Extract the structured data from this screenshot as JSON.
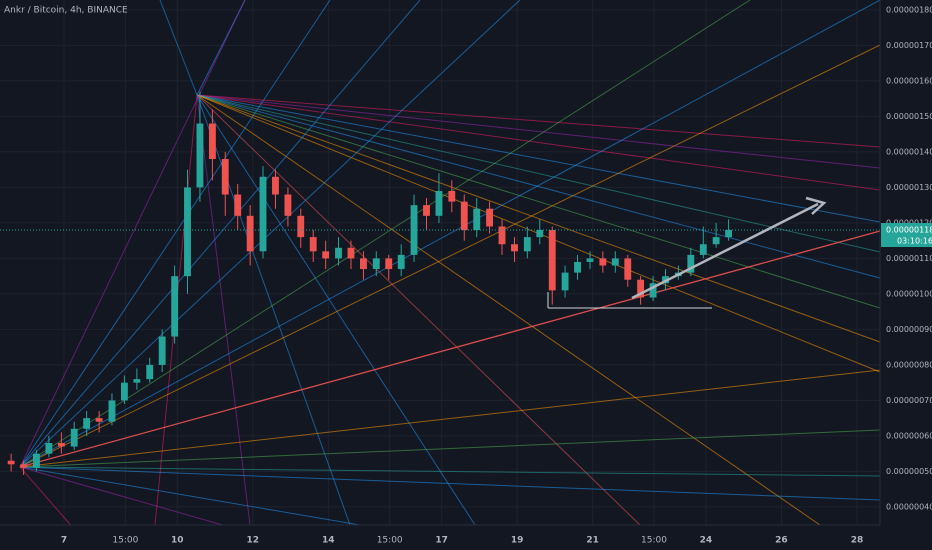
{
  "chart_data": {
    "type": "candlestick",
    "title": "Ankr / Bitcoin, 4h, BINANCE",
    "up_color": "#26a69a",
    "down_color": "#ef5350",
    "grid": true,
    "xlim": [
      5.305,
      28.61
    ],
    "ylim": [
      3.49e-07,
      1.828e-06
    ],
    "xticks": [
      {
        "value": 7,
        "label": "7"
      },
      {
        "value": 8.625,
        "label": "15:00"
      },
      {
        "value": 10,
        "label": "10"
      },
      {
        "value": 12,
        "label": "12"
      },
      {
        "value": 14,
        "label": "14"
      },
      {
        "value": 15.625,
        "label": "15:00"
      },
      {
        "value": 17,
        "label": "17"
      },
      {
        "value": 19,
        "label": "19"
      },
      {
        "value": 21,
        "label": "21"
      },
      {
        "value": 22.625,
        "label": "15:00"
      },
      {
        "value": 24,
        "label": "24"
      },
      {
        "value": 26,
        "label": "26"
      },
      {
        "value": 28,
        "label": "28"
      }
    ],
    "yticks": [
      {
        "value": 4e-07,
        "label": "0.00000040"
      },
      {
        "value": 5e-07,
        "label": "0.00000050"
      },
      {
        "value": 6e-07,
        "label": "0.00000060"
      },
      {
        "value": 7e-07,
        "label": "0.00000070"
      },
      {
        "value": 8e-07,
        "label": "0.00000080"
      },
      {
        "value": 9e-07,
        "label": "0.00000090"
      },
      {
        "value": 1e-06,
        "label": "0.00000100"
      },
      {
        "value": 1.1e-06,
        "label": "0.00000110"
      },
      {
        "value": 1.2e-06,
        "label": "0.00000120"
      },
      {
        "value": 1.3e-06,
        "label": "0.00000130"
      },
      {
        "value": 1.4e-06,
        "label": "0.00000140"
      },
      {
        "value": 1.5e-06,
        "label": "0.00000150"
      },
      {
        "value": 1.6e-06,
        "label": "0.00000160"
      },
      {
        "value": 1.7e-06,
        "label": "0.00000170"
      },
      {
        "value": 1.8e-06,
        "label": "0.00000180"
      }
    ],
    "last_price": {
      "value": 1.18e-06,
      "label": "0.00000118"
    },
    "countdown": "03:10:16",
    "x": [
      5.6,
      5.93,
      6.27,
      6.6,
      6.93,
      7.27,
      7.6,
      7.93,
      8.27,
      8.6,
      8.93,
      9.27,
      9.6,
      9.93,
      10.27,
      10.6,
      10.93,
      11.27,
      11.6,
      11.93,
      12.27,
      12.6,
      12.93,
      13.27,
      13.6,
      13.93,
      14.27,
      14.6,
      14.93,
      15.27,
      15.6,
      15.93,
      16.27,
      16.6,
      16.93,
      17.27,
      17.6,
      17.93,
      18.27,
      18.6,
      18.93,
      19.27,
      19.6,
      19.93,
      20.27,
      20.6,
      20.93,
      21.27,
      21.6,
      21.93,
      22.27,
      22.6,
      22.93,
      23.27,
      23.6,
      23.93,
      24.27,
      24.6
    ],
    "open": [
      5.3e-07,
      5.2e-07,
      5.1e-07,
      5.5e-07,
      5.8e-07,
      5.7e-07,
      6.2e-07,
      6.5e-07,
      6.4e-07,
      7e-07,
      7.5e-07,
      7.6e-07,
      8e-07,
      8.8e-07,
      1.05e-06,
      1.3e-06,
      1.48e-06,
      1.38e-06,
      1.28e-06,
      1.22e-06,
      1.12e-06,
      1.33e-06,
      1.28e-06,
      1.22e-06,
      1.16e-06,
      1.12e-06,
      1.1e-06,
      1.13e-06,
      1.1e-06,
      1.07e-06,
      1.1e-06,
      1.07e-06,
      1.11e-06,
      1.25e-06,
      1.22e-06,
      1.29e-06,
      1.26e-06,
      1.18e-06,
      1.24e-06,
      1.19e-06,
      1.14e-06,
      1.12e-06,
      1.16e-06,
      1.18e-06,
      1.01e-06,
      1.06e-06,
      1.09e-06,
      1.1e-06,
      1.08e-06,
      1.1e-06,
      1.04e-06,
      9.9e-07,
      1.03e-06,
      1.05e-06,
      1.06e-06,
      1.11e-06,
      1.14e-06,
      1.16e-06
    ],
    "high": [
      5.5e-07,
      5.3e-07,
      5.6e-07,
      6e-07,
      6.1e-07,
      6.4e-07,
      6.7e-07,
      6.7e-07,
      7.2e-07,
      7.7e-07,
      7.9e-07,
      8.2e-07,
      9e-07,
      1.08e-06,
      1.35e-06,
      1.57e-06,
      1.52e-06,
      1.4e-06,
      1.31e-06,
      1.25e-06,
      1.36e-06,
      1.35e-06,
      1.3e-06,
      1.24e-06,
      1.18e-06,
      1.15e-06,
      1.16e-06,
      1.15e-06,
      1.12e-06,
      1.12e-06,
      1.11e-06,
      1.14e-06,
      1.28e-06,
      1.27e-06,
      1.34e-06,
      1.32e-06,
      1.28e-06,
      1.27e-06,
      1.26e-06,
      1.21e-06,
      1.16e-06,
      1.19e-06,
      1.21e-06,
      1.19e-06,
      1.08e-06,
      1.11e-06,
      1.12e-06,
      1.12e-06,
      1.12e-06,
      1.11e-06,
      1.05e-06,
      1.05e-06,
      1.07e-06,
      1.08e-06,
      1.13e-06,
      1.19e-06,
      1.2e-06,
      1.21e-06
    ],
    "low": [
      5e-07,
      4.9e-07,
      5e-07,
      5.4e-07,
      5.5e-07,
      5.6e-07,
      6e-07,
      6.1e-07,
      6.3e-07,
      6.9e-07,
      7.3e-07,
      7.5e-07,
      7.8e-07,
      8.6e-07,
      1e-06,
      1.26e-06,
      1.32e-06,
      1.22e-06,
      1.18e-06,
      1.08e-06,
      1.1e-06,
      1.24e-06,
      1.19e-06,
      1.13e-06,
      1.09e-06,
      1.07e-06,
      1.08e-06,
      1.07e-06,
      1.04e-06,
      1.05e-06,
      1.04e-06,
      1.05e-06,
      1.09e-06,
      1.18e-06,
      1.2e-06,
      1.23e-06,
      1.15e-06,
      1.16e-06,
      1.17e-06,
      1.11e-06,
      1.09e-06,
      1.1e-06,
      1.14e-06,
      9.7e-07,
      9.9e-07,
      1.04e-06,
      1.07e-06,
      1.06e-06,
      1.06e-06,
      1.02e-06,
      9.7e-07,
      9.8e-07,
      1.01e-06,
      1.04e-06,
      1.05e-06,
      1.1e-06,
      1.13e-06,
      1.15e-06
    ],
    "close": [
      5.2e-07,
      5.1e-07,
      5.5e-07,
      5.8e-07,
      5.7e-07,
      6.2e-07,
      6.5e-07,
      6.4e-07,
      7e-07,
      7.5e-07,
      7.6e-07,
      8e-07,
      8.8e-07,
      1.05e-06,
      1.3e-06,
      1.48e-06,
      1.38e-06,
      1.28e-06,
      1.22e-06,
      1.12e-06,
      1.33e-06,
      1.28e-06,
      1.22e-06,
      1.16e-06,
      1.12e-06,
      1.1e-06,
      1.13e-06,
      1.1e-06,
      1.07e-06,
      1.1e-06,
      1.07e-06,
      1.11e-06,
      1.25e-06,
      1.22e-06,
      1.29e-06,
      1.26e-06,
      1.18e-06,
      1.24e-06,
      1.19e-06,
      1.14e-06,
      1.12e-06,
      1.16e-06,
      1.18e-06,
      1.01e-06,
      1.06e-06,
      1.09e-06,
      1.1e-06,
      1.08e-06,
      1.1e-06,
      1.04e-06,
      9.9e-07,
      1.03e-06,
      1.05e-06,
      1.06e-06,
      1.11e-06,
      1.14e-06,
      1.16e-06,
      1.18e-06
    ]
  }
}
